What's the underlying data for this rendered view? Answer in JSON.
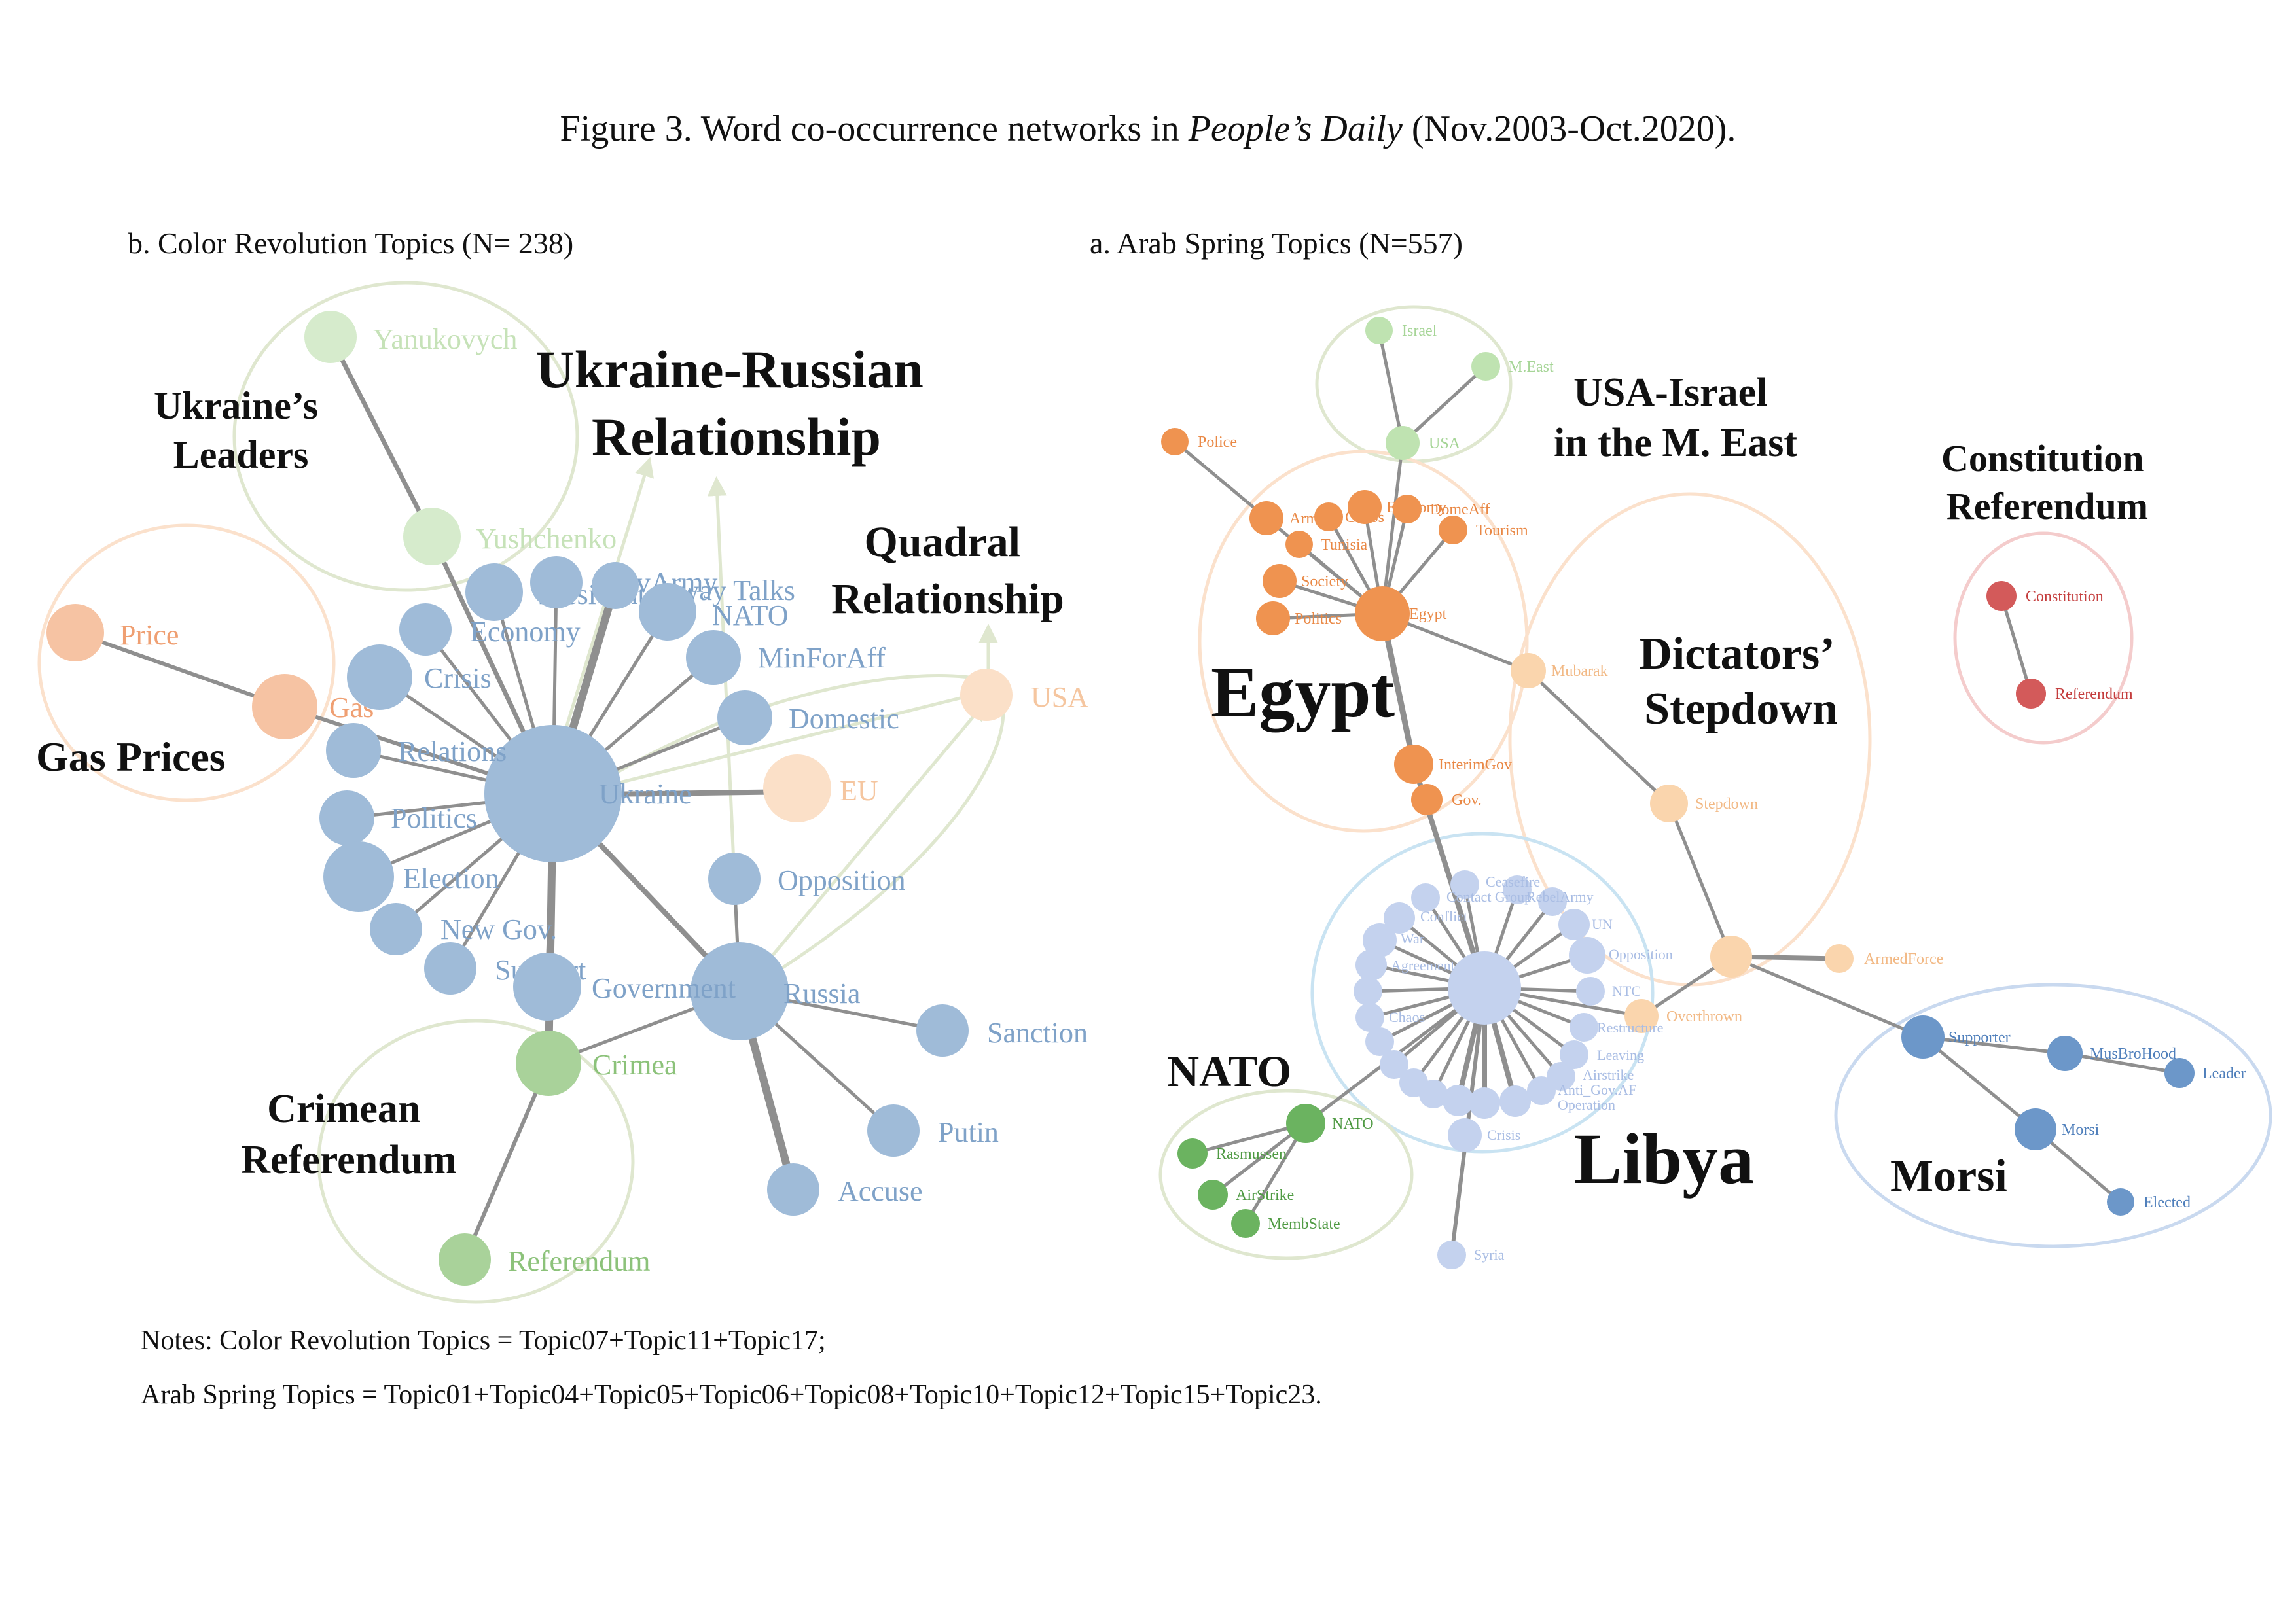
{
  "figure": {
    "title_prefix": "Figure 3. Word co-occurrence networks in ",
    "title_italic": "People’s Daily",
    "title_suffix": " (Nov.2003-Oct.2020).",
    "notes": [
      "Notes: Color Revolution Topics = Topic07+Topic11+Topic17;",
      "Arab Spring Topics = Topic01+Topic04+Topic05+Topic06+Topic08+Topic10+Topic12+Topic15+Topic23."
    ]
  },
  "colors": {
    "blue_color_rev": "#9fbbd8",
    "blue_color_rev_text": "#7fa2c8",
    "orange_light": "#f6c3a3",
    "orange_text": "#ef9f72",
    "peach": "#fbe0c8",
    "green_light": "#d6ebcc",
    "green_mid": "#a9d29a",
    "arab_orange": "#ef9350",
    "arab_peach": "#fad5ad",
    "arab_green_light": "#bfe3b1",
    "libya_blue": "#c4d2ee",
    "morsi_blue": "#6c97c9",
    "nato_green": "#6bb360",
    "red": "#d35a5a",
    "cluster_outline_green": "#dfe7cf",
    "cluster_outline_orange": "#fbe1cc",
    "cluster_outline_blue": "#c9d9ef",
    "cluster_outline_red": "#f4cccc"
  },
  "panels": [
    {
      "label": "b.   Color Revolution Topics (N= 238)",
      "clusters": [
        {
          "label": [
            "Ukraine’s",
            "Leaders"
          ]
        },
        {
          "label": [
            "Ukraine-Russian",
            "Relationship"
          ]
        },
        {
          "label": [
            "Quadral",
            "Relationship"
          ]
        },
        {
          "label": [
            "Gas Prices"
          ]
        },
        {
          "label": [
            "Crimean",
            "Referendum"
          ]
        }
      ],
      "nodes": [
        {
          "label": "Yanukovych",
          "color": "#d6ebcc",
          "text_color": "#c6e2b8"
        },
        {
          "label": "Yushchenko",
          "color": "#d6ebcc",
          "text_color": "#c6e2b8"
        },
        {
          "label": "Price",
          "color": "#f6c3a3",
          "text_color": "#ef9f72"
        },
        {
          "label": "Gas",
          "color": "#f6c3a3",
          "text_color": "#ef9f72"
        },
        {
          "label": "USA",
          "color": "#fbe0c8",
          "text_color": "#f5c6a0"
        },
        {
          "label": "EU",
          "color": "#fbe0c8",
          "text_color": "#f5c6a0"
        },
        {
          "label": "Ukraine",
          "color": "#9fbbd8",
          "text_color": "#7fa2c8"
        },
        {
          "label": "Russia",
          "color": "#9fbbd8",
          "text_color": "#7fa2c8"
        },
        {
          "label": "President",
          "color": "#9fbbd8",
          "text_color": "#7fa2c8"
        },
        {
          "label": "GovArmy",
          "color": "#9fbbd8",
          "text_color": "#7fa2c8"
        },
        {
          "label": "4-way Talks",
          "color": "#9fbbd8",
          "text_color": "#7fa2c8"
        },
        {
          "label": "NATO",
          "color": "#9fbbd8",
          "text_color": "#7fa2c8"
        },
        {
          "label": "Economy",
          "color": "#9fbbd8",
          "text_color": "#7fa2c8"
        },
        {
          "label": "MinForAff",
          "color": "#9fbbd8",
          "text_color": "#7fa2c8"
        },
        {
          "label": "Crisis",
          "color": "#9fbbd8",
          "text_color": "#7fa2c8"
        },
        {
          "label": "Domestic",
          "color": "#9fbbd8",
          "text_color": "#7fa2c8"
        },
        {
          "label": "Relations",
          "color": "#9fbbd8",
          "text_color": "#7fa2c8"
        },
        {
          "label": "Politics",
          "color": "#9fbbd8",
          "text_color": "#7fa2c8"
        },
        {
          "label": "Election",
          "color": "#9fbbd8",
          "text_color": "#7fa2c8"
        },
        {
          "label": "Opposition",
          "color": "#9fbbd8",
          "text_color": "#7fa2c8"
        },
        {
          "label": "New Gov.",
          "color": "#9fbbd8",
          "text_color": "#7fa2c8"
        },
        {
          "label": "Support",
          "color": "#9fbbd8",
          "text_color": "#7fa2c8"
        },
        {
          "label": "Government",
          "color": "#9fbbd8",
          "text_color": "#7fa2c8"
        },
        {
          "label": "Sanction",
          "color": "#9fbbd8",
          "text_color": "#7fa2c8"
        },
        {
          "label": "Putin",
          "color": "#9fbbd8",
          "text_color": "#7fa2c8"
        },
        {
          "label": "Accuse",
          "color": "#9fbbd8",
          "text_color": "#7fa2c8"
        },
        {
          "label": "Crimea",
          "color": "#a9d29a",
          "text_color": "#8cc27a"
        },
        {
          "label": "Referendum",
          "color": "#a9d29a",
          "text_color": "#8cc27a"
        }
      ]
    },
    {
      "label": "a.   Arab Spring Topics (N=557)",
      "clusters": [
        {
          "label": [
            "USA-Israel",
            "in the M. East"
          ]
        },
        {
          "label": [
            "Constitution",
            "Referendum"
          ]
        },
        {
          "label": [
            "Egypt"
          ]
        },
        {
          "label": [
            "Dictators’",
            "Stepdown"
          ]
        },
        {
          "label": [
            "NATO"
          ]
        },
        {
          "label": [
            "Libya"
          ]
        },
        {
          "label": [
            "Morsi"
          ]
        }
      ],
      "nodes": [
        {
          "label": "Israel",
          "color": "#bfe3b1",
          "text_color": "#a6d597"
        },
        {
          "label": "M.East",
          "color": "#bfe3b1",
          "text_color": "#a6d597"
        },
        {
          "label": "USA",
          "color": "#bfe3b1",
          "text_color": "#a6d597"
        },
        {
          "label": "Police",
          "color": "#ef9350",
          "text_color": "#e98845"
        },
        {
          "label": "Army",
          "color": "#ef9350",
          "text_color": "#e98845"
        },
        {
          "label": "Chaos",
          "color": "#ef9350",
          "text_color": "#e98845"
        },
        {
          "label": "Economy",
          "color": "#ef9350",
          "text_color": "#e98845"
        },
        {
          "label": "DomeAff",
          "color": "#ef9350",
          "text_color": "#e98845"
        },
        {
          "label": "Tourism",
          "color": "#ef9350",
          "text_color": "#e98845"
        },
        {
          "label": "Tunisia",
          "color": "#ef9350",
          "text_color": "#e98845"
        },
        {
          "label": "Society",
          "color": "#ef9350",
          "text_color": "#e98845"
        },
        {
          "label": "Politics",
          "color": "#ef9350",
          "text_color": "#e98845"
        },
        {
          "label": "Egypt",
          "color": "#ef9350",
          "text_color": "#e98845"
        },
        {
          "label": "InterimGov",
          "color": "#ef9350",
          "text_color": "#e98845"
        },
        {
          "label": "Gov.",
          "color": "#ef9350",
          "text_color": "#e98845"
        },
        {
          "label": "Mubarak",
          "color": "#fad5ad",
          "text_color": "#f2b985"
        },
        {
          "label": "Stepdown",
          "color": "#fad5ad",
          "text_color": "#f2b985"
        },
        {
          "label": "Overthrown",
          "color": "#fad5ad",
          "text_color": "#f2b985"
        },
        {
          "label": "ArmedForce",
          "color": "#fad5ad",
          "text_color": "#f2b985"
        },
        {
          "label": "Constitution",
          "color": "#d35a5a",
          "text_color": "#c43d3d"
        },
        {
          "label": "Referendum",
          "color": "#d35a5a",
          "text_color": "#c43d3d"
        },
        {
          "label": "Supporter",
          "color": "#6c97c9",
          "text_color": "#4f7fbb"
        },
        {
          "label": "MusBroHood",
          "color": "#6c97c9",
          "text_color": "#4f7fbb"
        },
        {
          "label": "Leader",
          "color": "#6c97c9",
          "text_color": "#4f7fbb"
        },
        {
          "label": "Morsi",
          "color": "#6c97c9",
          "text_color": "#4f7fbb"
        },
        {
          "label": "Elected",
          "color": "#6c97c9",
          "text_color": "#4f7fbb"
        },
        {
          "label": "NATO",
          "color": "#6bb360",
          "text_color": "#4f9a43"
        },
        {
          "label": "Rasmussen",
          "color": "#6bb360",
          "text_color": "#4f9a43"
        },
        {
          "label": "AirStrike",
          "color": "#6bb360",
          "text_color": "#4f9a43"
        },
        {
          "label": "MembState",
          "color": "#6bb360",
          "text_color": "#4f9a43"
        },
        {
          "label": "Ceasefire",
          "color": "#c4d2ee",
          "text_color": "#a9bde4"
        },
        {
          "label": "Contact Group",
          "color": "#c4d2ee",
          "text_color": "#a9bde4"
        },
        {
          "label": "RebelArmy",
          "color": "#c4d2ee",
          "text_color": "#a9bde4"
        },
        {
          "label": "Conflict",
          "color": "#c4d2ee",
          "text_color": "#a9bde4"
        },
        {
          "label": "UN",
          "color": "#c4d2ee",
          "text_color": "#a9bde4"
        },
        {
          "label": "War",
          "color": "#c4d2ee",
          "text_color": "#a9bde4"
        },
        {
          "label": "Opposition",
          "color": "#c4d2ee",
          "text_color": "#a9bde4"
        },
        {
          "label": "Agreement",
          "color": "#c4d2ee",
          "text_color": "#a9bde4"
        },
        {
          "label": "NTC",
          "color": "#c4d2ee",
          "text_color": "#a9bde4"
        },
        {
          "label": "Restructure",
          "color": "#c4d2ee",
          "text_color": "#a9bde4"
        },
        {
          "label": "Chaos",
          "color": "#c4d2ee",
          "text_color": "#a9bde4"
        },
        {
          "label": "Leaving",
          "color": "#c4d2ee",
          "text_color": "#a9bde4"
        },
        {
          "label": "Airstrike",
          "color": "#c4d2ee",
          "text_color": "#a9bde4"
        },
        {
          "label": "Anti_Gov.AF",
          "color": "#c4d2ee",
          "text_color": "#a9bde4"
        },
        {
          "label": "Operation",
          "color": "#c4d2ee",
          "text_color": "#a9bde4"
        },
        {
          "label": "Crisis",
          "color": "#c4d2ee",
          "text_color": "#a9bde4"
        },
        {
          "label": "Syria",
          "color": "#c4d2ee",
          "text_color": "#a9bde4"
        }
      ]
    }
  ]
}
